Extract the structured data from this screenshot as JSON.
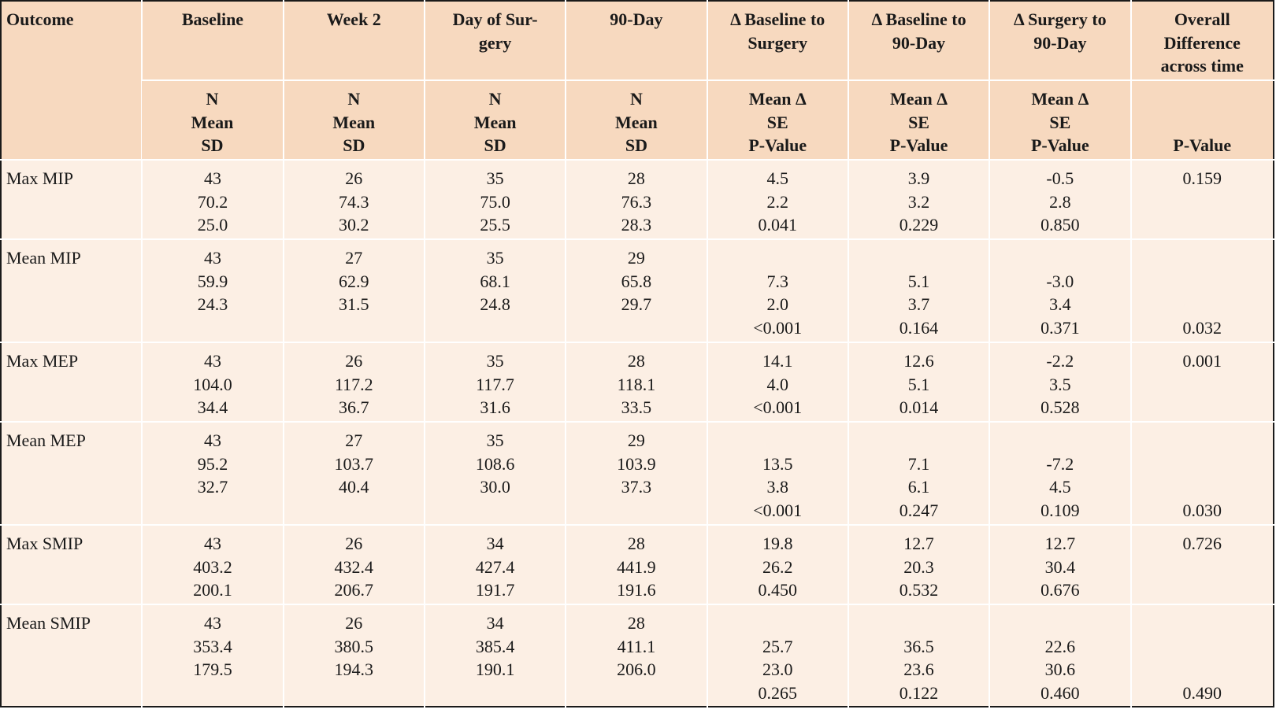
{
  "table": {
    "header_top": [
      "Outcome",
      "Baseline",
      "Week 2",
      "Day of Sur-\ngery",
      "90-Day",
      "Δ Baseline to\nSurgery",
      "Δ Baseline to\n90-Day",
      "Δ Surgery to\n90-Day",
      "Overall\nDifference\nacross time"
    ],
    "header_sub": [
      [
        "N",
        "Mean",
        "SD"
      ],
      [
        "N",
        "Mean",
        "SD"
      ],
      [
        "N",
        "Mean",
        "SD"
      ],
      [
        "N",
        "Mean",
        "SD"
      ],
      [
        "Mean Δ",
        "SE",
        "P-Value"
      ],
      [
        "Mean Δ",
        "SE",
        "P-Value"
      ],
      [
        "Mean Δ",
        "SE",
        "P-Value"
      ],
      [
        "",
        "",
        "P-Value"
      ]
    ],
    "rows": [
      {
        "outcome": "Max MIP",
        "cells": [
          [
            "43",
            "70.2",
            "25.0"
          ],
          [
            "26",
            "74.3",
            "30.2"
          ],
          [
            "35",
            "75.0",
            "25.5"
          ],
          [
            "28",
            "76.3",
            "28.3"
          ],
          [
            "4.5",
            "2.2",
            "0.041"
          ],
          [
            "3.9",
            "3.2",
            "0.229"
          ],
          [
            "-0.5",
            "2.8",
            "0.850"
          ],
          [
            "0.159",
            "",
            ""
          ]
        ]
      },
      {
        "outcome": "Mean MIP",
        "cells": [
          [
            "43",
            "59.9",
            "24.3",
            ""
          ],
          [
            "27",
            "62.9",
            "31.5",
            ""
          ],
          [
            "35",
            "68.1",
            "24.8",
            ""
          ],
          [
            "29",
            "65.8",
            "29.7",
            ""
          ],
          [
            "",
            "7.3",
            "2.0",
            "<0.001"
          ],
          [
            "",
            "5.1",
            "3.7",
            "0.164"
          ],
          [
            "",
            "-3.0",
            "3.4",
            "0.371"
          ],
          [
            "",
            "",
            "",
            "0.032"
          ]
        ]
      },
      {
        "outcome": "Max MEP",
        "cells": [
          [
            "43",
            "104.0",
            "34.4"
          ],
          [
            "26",
            "117.2",
            "36.7"
          ],
          [
            "35",
            "117.7",
            "31.6"
          ],
          [
            "28",
            "118.1",
            "33.5"
          ],
          [
            "14.1",
            "4.0",
            "<0.001"
          ],
          [
            "12.6",
            "5.1",
            "0.014"
          ],
          [
            "-2.2",
            "3.5",
            "0.528"
          ],
          [
            "0.001",
            "",
            ""
          ]
        ]
      },
      {
        "outcome": "Mean MEP",
        "cells": [
          [
            "43",
            "95.2",
            "32.7",
            ""
          ],
          [
            "27",
            "103.7",
            "40.4",
            ""
          ],
          [
            "35",
            "108.6",
            "30.0",
            ""
          ],
          [
            "29",
            "103.9",
            "37.3",
            ""
          ],
          [
            "",
            "13.5",
            "3.8",
            "<0.001"
          ],
          [
            "",
            "7.1",
            "6.1",
            "0.247"
          ],
          [
            "",
            "-7.2",
            "4.5",
            "0.109"
          ],
          [
            "",
            "",
            "",
            "0.030"
          ]
        ]
      },
      {
        "outcome": "Max SMIP",
        "cells": [
          [
            "43",
            "403.2",
            "200.1"
          ],
          [
            "26",
            "432.4",
            "206.7"
          ],
          [
            "34",
            "427.4",
            "191.7"
          ],
          [
            "28",
            "441.9",
            "191.6"
          ],
          [
            "19.8",
            "26.2",
            "0.450"
          ],
          [
            "12.7",
            "20.3",
            "0.532"
          ],
          [
            "12.7",
            "30.4",
            "0.676"
          ],
          [
            "0.726",
            "",
            ""
          ]
        ]
      },
      {
        "outcome": "Mean SMIP",
        "cells": [
          [
            "43",
            "353.4",
            "179.5",
            ""
          ],
          [
            "26",
            "380.5",
            "194.3",
            ""
          ],
          [
            "34",
            "385.4",
            "190.1",
            ""
          ],
          [
            "28",
            "411.1",
            "206.0",
            ""
          ],
          [
            "",
            "25.7",
            "23.0",
            "0.265"
          ],
          [
            "",
            "36.5",
            "23.6",
            "0.122"
          ],
          [
            "",
            "22.6",
            "30.6",
            "0.460"
          ],
          [
            "",
            "",
            "",
            "0.490"
          ]
        ]
      }
    ]
  }
}
